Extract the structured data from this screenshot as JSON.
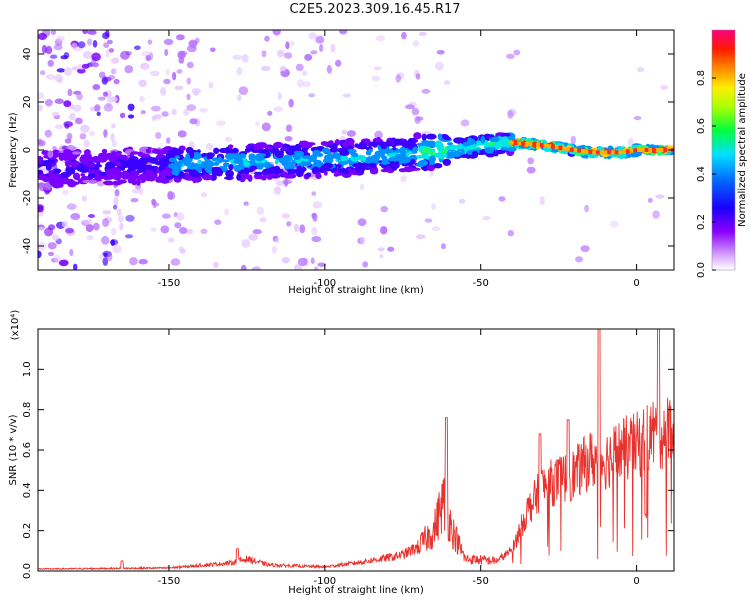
{
  "title": "C2E5.2023.309.16.45.R17",
  "chart_data": [
    {
      "type": "heatmap",
      "xlabel": "Height of straight line (km)",
      "ylabel": "Frequency (Hz)",
      "xlim": [
        -192,
        12
      ],
      "ylim": [
        -50,
        50
      ],
      "xticks": [
        -150,
        -100,
        -50,
        0
      ],
      "yticks": [
        -40,
        -20,
        0,
        20,
        40
      ],
      "ridge": [
        {
          "x": -192,
          "y": -8
        },
        {
          "x": -165,
          "y": -7
        },
        {
          "x": -150,
          "y": -6
        },
        {
          "x": -130,
          "y": -5
        },
        {
          "x": -100,
          "y": -4
        },
        {
          "x": -80,
          "y": -2
        },
        {
          "x": -60,
          "y": 0
        },
        {
          "x": -50,
          "y": 2
        },
        {
          "x": -40,
          "y": 3
        },
        {
          "x": -30,
          "y": 2
        },
        {
          "x": -20,
          "y": 0
        },
        {
          "x": -14,
          "y": -1
        },
        {
          "x": -5,
          "y": -1
        },
        {
          "x": 0,
          "y": 0
        },
        {
          "x": 12,
          "y": 0
        }
      ],
      "colorbar": {
        "label": "Normalized spectral amplitude",
        "ticks": [
          0.0,
          0.2,
          0.4,
          0.6,
          0.8
        ]
      }
    },
    {
      "type": "line",
      "xlabel": "Height of straight line (km)",
      "ylabel": "SNR (10 * v/v)",
      "multiplier": "(x10⁴)",
      "xlim": [
        -192,
        12
      ],
      "ylim": [
        0,
        1.2
      ],
      "xticks": [
        -150,
        -100,
        -50,
        0
      ],
      "yticks": [
        0.0,
        0.2,
        0.4,
        0.6,
        0.8,
        1.0
      ],
      "series": [
        {
          "color": "#e8322d",
          "envelope": [
            {
              "x": -192,
              "y": 0.01
            },
            {
              "x": -150,
              "y": 0.015
            },
            {
              "x": -130,
              "y": 0.04
            },
            {
              "x": -125,
              "y": 0.06
            },
            {
              "x": -118,
              "y": 0.03
            },
            {
              "x": -100,
              "y": 0.02
            },
            {
              "x": -90,
              "y": 0.04
            },
            {
              "x": -82,
              "y": 0.06
            },
            {
              "x": -75,
              "y": 0.08
            },
            {
              "x": -70,
              "y": 0.12
            },
            {
              "x": -65,
              "y": 0.2
            },
            {
              "x": -62,
              "y": 0.35
            },
            {
              "x": -59,
              "y": 0.2
            },
            {
              "x": -55,
              "y": 0.06
            },
            {
              "x": -45,
              "y": 0.05
            },
            {
              "x": -40,
              "y": 0.1
            },
            {
              "x": -35,
              "y": 0.3
            },
            {
              "x": -30,
              "y": 0.42
            },
            {
              "x": -25,
              "y": 0.45
            },
            {
              "x": -20,
              "y": 0.48
            },
            {
              "x": -15,
              "y": 0.55
            },
            {
              "x": -10,
              "y": 0.55
            },
            {
              "x": -5,
              "y": 0.6
            },
            {
              "x": 0,
              "y": 0.62
            },
            {
              "x": 5,
              "y": 0.68
            },
            {
              "x": 12,
              "y": 0.7
            }
          ],
          "peaks": [
            {
              "x": -165,
              "y": 0.05
            },
            {
              "x": -128,
              "y": 0.11
            },
            {
              "x": -61,
              "y": 0.76
            },
            {
              "x": -31,
              "y": 0.68
            },
            {
              "x": -22,
              "y": 0.75
            },
            {
              "x": -12,
              "y": 1.2
            },
            {
              "x": 7,
              "y": 1.2
            },
            {
              "x": 3,
              "y": 0.28
            }
          ]
        }
      ]
    }
  ]
}
